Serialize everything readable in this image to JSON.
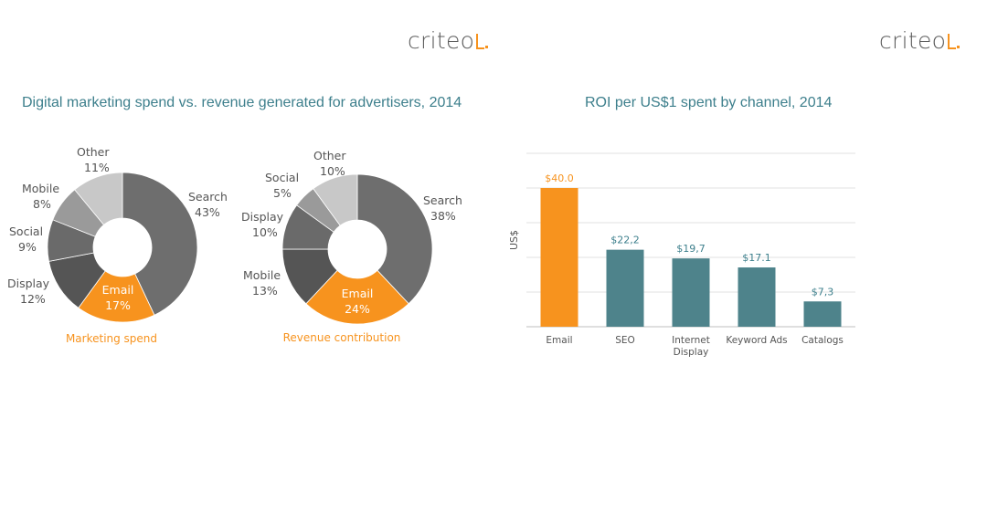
{
  "logos": {
    "left": "criteo",
    "right": "criteo"
  },
  "colors": {
    "accent": "#f7931e",
    "teal": "#4e838b",
    "title": "#3d7f8c",
    "donut_grays": [
      "#6e6e6e",
      "#8a8a8a",
      "#555555",
      "#6a6a6a",
      "#9a9a9a",
      "#c8c8c8"
    ]
  },
  "titles": {
    "left": "Digital marketing spend vs. revenue generated for advertisers, 2014",
    "right": "ROI per US$1 spent by channel, 2014"
  },
  "chart_data": [
    {
      "type": "pie",
      "donut": true,
      "caption": "Marketing spend",
      "slices": [
        {
          "label": "Search",
          "value": 43,
          "pct_text": "43%"
        },
        {
          "label": "Email",
          "value": 17,
          "pct_text": "17%"
        },
        {
          "label": "Display",
          "value": 12,
          "pct_text": "12%"
        },
        {
          "label": "Social",
          "value": 9,
          "pct_text": "9%"
        },
        {
          "label": "Mobile",
          "value": 8,
          "pct_text": "8%"
        },
        {
          "label": "Other",
          "value": 11,
          "pct_text": "11%"
        }
      ]
    },
    {
      "type": "pie",
      "donut": true,
      "caption": "Revenue contribution",
      "slices": [
        {
          "label": "Search",
          "value": 38,
          "pct_text": "38%"
        },
        {
          "label": "Email",
          "value": 24,
          "pct_text": "24%"
        },
        {
          "label": "Mobile",
          "value": 13,
          "pct_text": "13%"
        },
        {
          "label": "Display",
          "value": 10,
          "pct_text": "10%"
        },
        {
          "label": "Social",
          "value": 5,
          "pct_text": "5%"
        },
        {
          "label": "Other",
          "value": 10,
          "pct_text": "10%"
        }
      ]
    },
    {
      "type": "bar",
      "title": "ROI per US$1 spent by channel, 2014",
      "ylabel": "US$",
      "categories": [
        "Email",
        "SEO",
        "Internet Display",
        "Keyword Ads",
        "Catalogs"
      ],
      "values": [
        40.0,
        22.2,
        19.7,
        17.1,
        7.3
      ],
      "value_labels": [
        "$40.0",
        "$22,2",
        "$19,7",
        "$17.1",
        "$7,3"
      ],
      "ylim": [
        0,
        50
      ],
      "grid": true,
      "highlight": "Email"
    }
  ]
}
